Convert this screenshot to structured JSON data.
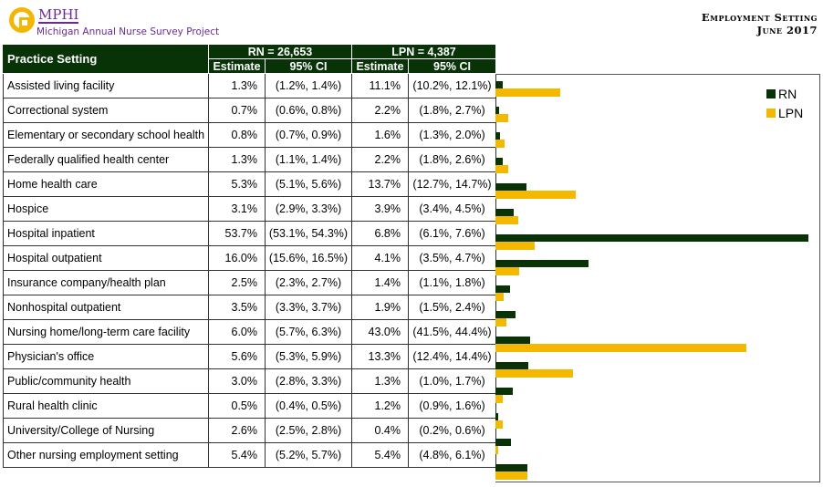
{
  "header": {
    "org": "MPHI",
    "project": "Michigan Annual Nurse Survey Project",
    "title": "Employment Setting",
    "date": "June 2017"
  },
  "table": {
    "col_setting": "Practice Setting",
    "rn_group": "RN = 26,653",
    "lpn_group": "LPN = 4,387",
    "estimate": "Estimate",
    "ci": "95% CI",
    "rows": [
      {
        "setting": "Assisted living facility",
        "rn": "1.3%",
        "rn_ci": "(1.2%, 1.4%)",
        "lpn": "11.1%",
        "lpn_ci": "(10.2%, 12.1%)"
      },
      {
        "setting": "Correctional system",
        "rn": "0.7%",
        "rn_ci": "(0.6%, 0.8%)",
        "lpn": "2.2%",
        "lpn_ci": "(1.8%, 2.7%)"
      },
      {
        "setting": "Elementary or secondary school health",
        "rn": "0.8%",
        "rn_ci": "(0.7%, 0.9%)",
        "lpn": "1.6%",
        "lpn_ci": "(1.3%, 2.0%)"
      },
      {
        "setting": "Federally qualified health center",
        "rn": "1.3%",
        "rn_ci": "(1.1%, 1.4%)",
        "lpn": "2.2%",
        "lpn_ci": "(1.8%, 2.6%)"
      },
      {
        "setting": "Home health care",
        "rn": "5.3%",
        "rn_ci": "(5.1%, 5.6%)",
        "lpn": "13.7%",
        "lpn_ci": "(12.7%, 14.7%)"
      },
      {
        "setting": "Hospice",
        "rn": "3.1%",
        "rn_ci": "(2.9%, 3.3%)",
        "lpn": "3.9%",
        "lpn_ci": "(3.4%, 4.5%)"
      },
      {
        "setting": "Hospital inpatient",
        "rn": "53.7%",
        "rn_ci": "(53.1%, 54.3%)",
        "lpn": "6.8%",
        "lpn_ci": "(6.1%, 7.6%)"
      },
      {
        "setting": "Hospital outpatient",
        "rn": "16.0%",
        "rn_ci": "(15.6%, 16.5%)",
        "lpn": "4.1%",
        "lpn_ci": "(3.5%, 4.7%)"
      },
      {
        "setting": "Insurance company/health plan",
        "rn": "2.5%",
        "rn_ci": "(2.3%, 2.7%)",
        "lpn": "1.4%",
        "lpn_ci": "(1.1%, 1.8%)"
      },
      {
        "setting": "Nonhospital outpatient",
        "rn": "3.5%",
        "rn_ci": "(3.3%, 3.7%)",
        "lpn": "1.9%",
        "lpn_ci": "(1.5%, 2.4%)"
      },
      {
        "setting": "Nursing home/long-term care facility",
        "rn": "6.0%",
        "rn_ci": "(5.7%, 6.3%)",
        "lpn": "43.0%",
        "lpn_ci": "(41.5%, 44.4%)"
      },
      {
        "setting": "Physician's office",
        "rn": "5.6%",
        "rn_ci": "(5.3%, 5.9%)",
        "lpn": "13.3%",
        "lpn_ci": "(12.4%, 14.4%)"
      },
      {
        "setting": "Public/community health",
        "rn": "3.0%",
        "rn_ci": "(2.8%, 3.3%)",
        "lpn": "1.3%",
        "lpn_ci": "(1.0%, 1.7%)"
      },
      {
        "setting": "Rural health clinic",
        "rn": "0.5%",
        "rn_ci": "(0.4%, 0.5%)",
        "lpn": "1.2%",
        "lpn_ci": "(0.9%, 1.6%)"
      },
      {
        "setting": "University/College of Nursing",
        "rn": "2.6%",
        "rn_ci": "(2.5%, 2.8%)",
        "lpn": "0.4%",
        "lpn_ci": "(0.2%, 0.6%)"
      },
      {
        "setting": "Other nursing employment setting",
        "rn": "5.4%",
        "rn_ci": "(5.2%, 5.7%)",
        "lpn": "5.4%",
        "lpn_ci": "(4.8%, 6.1%)"
      }
    ]
  },
  "chart_data": {
    "type": "bar",
    "orientation": "horizontal",
    "xlim": [
      0,
      55.7
    ],
    "grid": false,
    "legend_position": "top-right",
    "categories": [
      "Assisted living facility",
      "Correctional system",
      "Elementary or secondary school health",
      "Federally qualified health center",
      "Home health care",
      "Hospice",
      "Hospital inpatient",
      "Hospital outpatient",
      "Insurance company/health plan",
      "Nonhospital outpatient",
      "Nursing home/long-term care facility",
      "Physician's office",
      "Public/community health",
      "Rural health clinic",
      "University/College of Nursing",
      "Other nursing employment setting"
    ],
    "series": [
      {
        "name": "RN",
        "color": "#073307",
        "values": [
          1.3,
          0.7,
          0.8,
          1.3,
          5.3,
          3.1,
          53.7,
          16.0,
          2.5,
          3.5,
          6.0,
          5.6,
          3.0,
          0.5,
          2.6,
          5.4
        ]
      },
      {
        "name": "LPN",
        "color": "#f5b800",
        "values": [
          11.1,
          2.2,
          1.6,
          2.2,
          13.7,
          3.9,
          6.8,
          4.1,
          1.4,
          1.9,
          43.0,
          13.3,
          1.3,
          1.2,
          0.4,
          5.4
        ]
      }
    ]
  }
}
